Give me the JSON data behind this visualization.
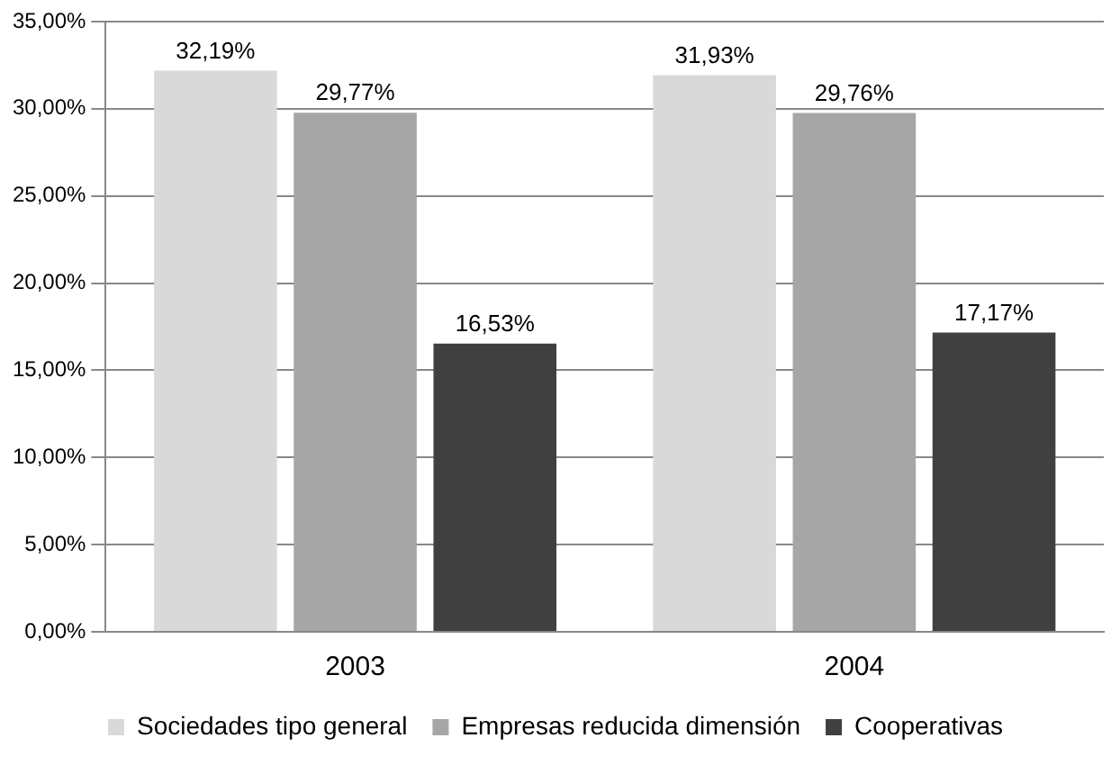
{
  "chart_data": {
    "type": "bar",
    "categories": [
      "2003",
      "2004"
    ],
    "series": [
      {
        "name": "Sociedades tipo general",
        "color": "#d9d9d9",
        "values": [
          32.19,
          31.93
        ],
        "value_labels": [
          "32,19%",
          "31,93%"
        ]
      },
      {
        "name": "Empresas reducida dimensión",
        "color": "#a6a6a6",
        "values": [
          29.77,
          29.76
        ],
        "value_labels": [
          "29,77%",
          "29,76%"
        ]
      },
      {
        "name": "Cooperativas",
        "color": "#404040",
        "values": [
          16.53,
          17.17
        ],
        "value_labels": [
          "16,53%",
          "17,17%"
        ]
      }
    ],
    "ylim": [
      0,
      35
    ],
    "yticks": [
      {
        "value": 0,
        "label": "0,00%"
      },
      {
        "value": 5,
        "label": "5,00%"
      },
      {
        "value": 10,
        "label": "10,00%"
      },
      {
        "value": 15,
        "label": "15,00%"
      },
      {
        "value": 20,
        "label": "20,00%"
      },
      {
        "value": 25,
        "label": "25,00%"
      },
      {
        "value": 30,
        "label": "30,00%"
      },
      {
        "value": 35,
        "label": "35,00%"
      }
    ],
    "grid": "y",
    "legend": "bottom"
  }
}
